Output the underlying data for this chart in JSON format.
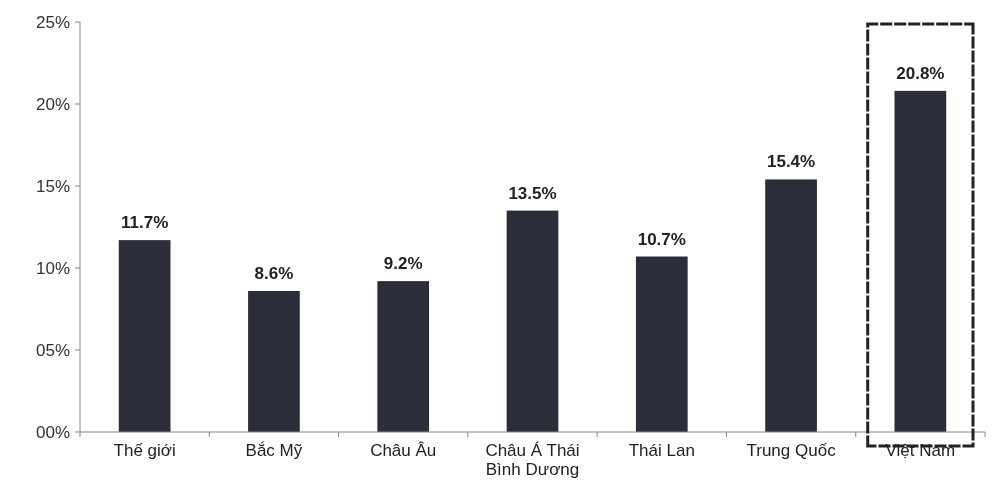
{
  "chart_data": {
    "type": "bar",
    "categories": [
      "Thế giới",
      "Bắc Mỹ",
      "Châu Âu",
      "Châu Á Thái Bình Dương",
      "Thái Lan",
      "Trung Quốc",
      "Việt Nam"
    ],
    "values": [
      11.7,
      8.6,
      9.2,
      13.5,
      10.7,
      15.4,
      20.8
    ],
    "value_labels": [
      "11.7%",
      "8.6%",
      "9.2%",
      "13.5%",
      "10.7%",
      "15.4%",
      "20.8%"
    ],
    "color": "#2b2e38",
    "ylim": [
      0,
      25
    ],
    "yticks": [
      {
        "value": 0,
        "label": "00%"
      },
      {
        "value": 5,
        "label": "05%"
      },
      {
        "value": 10,
        "label": "10%"
      },
      {
        "value": 15,
        "label": "15%"
      },
      {
        "value": 20,
        "label": "20%"
      },
      {
        "value": 25,
        "label": "25%"
      }
    ],
    "grid": false
  }
}
